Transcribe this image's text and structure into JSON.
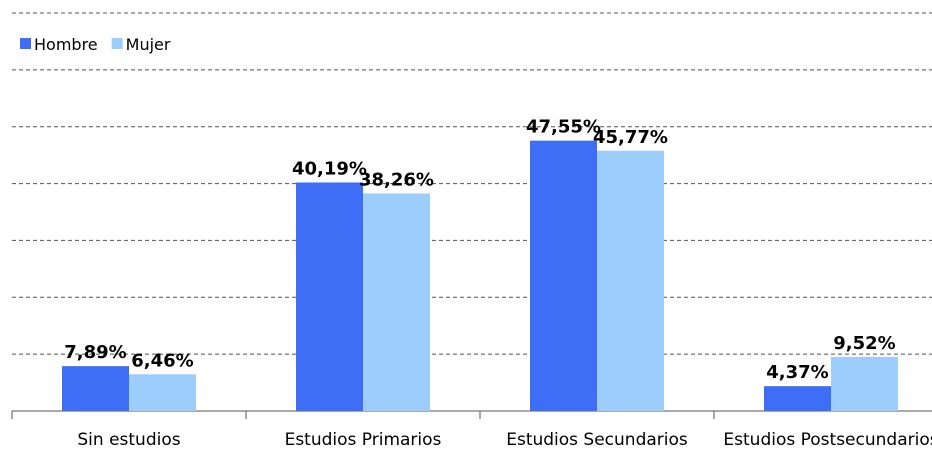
{
  "chart_data": {
    "type": "bar",
    "categories": [
      "Sin estudios",
      "Estudios Primarios",
      "Estudios Secundarios",
      "Estudios Postsecundarios"
    ],
    "series": [
      {
        "name": "Hombre",
        "color": "#3d6ef5",
        "values": [
          7.89,
          40.19,
          47.55,
          4.37
        ],
        "value_labels": [
          "7,89%",
          "40,19%",
          "47,55%",
          "4,37%"
        ]
      },
      {
        "name": "Mujer",
        "color": "#9dcdfc",
        "values": [
          6.46,
          38.26,
          45.77,
          9.52
        ],
        "value_labels": [
          "6,46%",
          "38,26%",
          "45,77%",
          "9,52%"
        ]
      }
    ],
    "ylim": [
      0,
      70
    ],
    "yticks": [
      0,
      10,
      20,
      30,
      40,
      50,
      60,
      70
    ],
    "grid": true,
    "legend": "top-left"
  }
}
